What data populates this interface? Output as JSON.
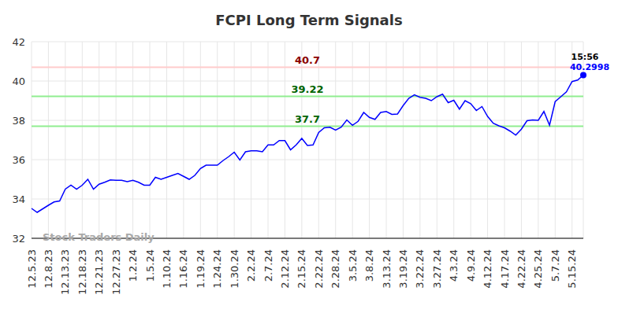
{
  "chart_data": {
    "type": "line",
    "title": "FCPI Long Term Signals",
    "watermark": "Stock Traders Daily",
    "color": "#0000ff",
    "grid": true,
    "ylim": [
      32,
      42
    ],
    "yticks": [
      32,
      34,
      36,
      38,
      40,
      42
    ],
    "categories": [
      "12.5.23",
      null,
      null,
      "12.8.23",
      null,
      null,
      "12.13.23",
      null,
      null,
      "12.18.23",
      null,
      null,
      "12.21.23",
      null,
      null,
      "12.27.23",
      null,
      null,
      "1.2.24",
      null,
      null,
      "1.5.24",
      null,
      null,
      "1.10.24",
      null,
      null,
      "1.16.24",
      null,
      null,
      "1.19.24",
      null,
      null,
      "1.24.24",
      null,
      null,
      "1.30.24",
      null,
      null,
      "2.2.24",
      null,
      null,
      "2.7.24",
      null,
      null,
      "2.12.24",
      null,
      null,
      "2.15.24",
      null,
      null,
      "2.22.24",
      null,
      null,
      "2.28.24",
      null,
      null,
      "3.5.24",
      null,
      null,
      "3.8.24",
      null,
      null,
      "3.13.24",
      null,
      null,
      "3.19.24",
      null,
      null,
      "3.22.24",
      null,
      null,
      "3.27.24",
      null,
      null,
      "4.3.24",
      null,
      null,
      "4.9.24",
      null,
      null,
      "4.12.24",
      null,
      null,
      "4.17.24",
      null,
      null,
      "4.22.24",
      null,
      null,
      "4.25.24",
      null,
      null,
      "5.7.24",
      null,
      null,
      "5.15.24",
      null,
      null
    ],
    "values": [
      33.52,
      33.32,
      33.5,
      33.68,
      33.85,
      33.9,
      34.5,
      34.7,
      34.5,
      34.7,
      35.0,
      34.5,
      34.75,
      34.85,
      34.97,
      34.95,
      34.95,
      34.88,
      34.95,
      34.85,
      34.7,
      34.7,
      35.1,
      35.0,
      35.1,
      35.2,
      35.3,
      35.15,
      35.0,
      35.2,
      35.55,
      35.72,
      35.72,
      35.72,
      35.95,
      36.15,
      36.38,
      35.98,
      36.4,
      36.45,
      36.45,
      36.4,
      36.75,
      36.75,
      36.97,
      36.97,
      36.5,
      36.75,
      37.08,
      36.72,
      36.75,
      37.38,
      37.62,
      37.65,
      37.5,
      37.65,
      38.02,
      37.75,
      37.95,
      38.4,
      38.15,
      38.05,
      38.4,
      38.45,
      38.3,
      38.32,
      38.75,
      39.12,
      39.3,
      39.17,
      39.12,
      39.0,
      39.2,
      39.33,
      38.9,
      39.02,
      38.57,
      39.0,
      38.85,
      38.5,
      38.7,
      38.2,
      37.85,
      37.72,
      37.62,
      37.45,
      37.25,
      37.55,
      37.98,
      38.02,
      38.0,
      38.45,
      37.75,
      38.95,
      39.2,
      39.45,
      39.97,
      40.05,
      40.2998
    ],
    "reference_lines": [
      {
        "value": 40.7,
        "color": "#8b0000"
      },
      {
        "value": 39.22,
        "color": "#006400"
      },
      {
        "value": 37.7,
        "color": "#006400"
      }
    ],
    "last_point_time": "15:56"
  }
}
